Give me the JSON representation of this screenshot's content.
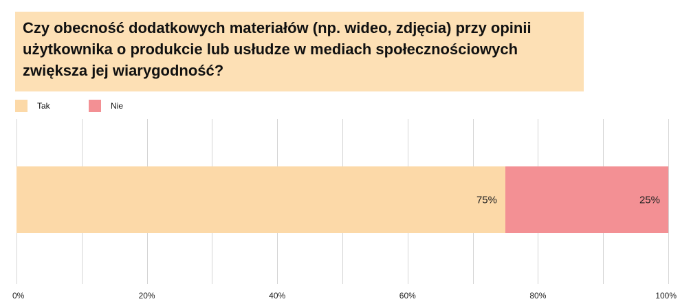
{
  "chart_data": {
    "type": "bar",
    "orientation": "horizontal",
    "stacked": true,
    "title": "Czy obecność dodatkowych materiałów (np. wideo, zdjęcia) przy opinii użytkownika o produkcie lub usłudze w mediach społecznościowych zwiększa jej wiarygodność?",
    "series": [
      {
        "name": "Tak",
        "values": [
          75
        ],
        "label": "75%",
        "color": "#fcd9a8"
      },
      {
        "name": "Nie",
        "values": [
          25
        ],
        "label": "25%",
        "color": "#f39094"
      }
    ],
    "xlim": [
      0,
      100
    ],
    "x_ticks": [
      0,
      20,
      40,
      60,
      80,
      100
    ],
    "x_tick_labels": [
      "0%",
      "20%",
      "40%",
      "60%",
      "80%",
      "100%"
    ],
    "xlabel": "",
    "ylabel": "",
    "grid": true,
    "legend_position": "top-left"
  }
}
